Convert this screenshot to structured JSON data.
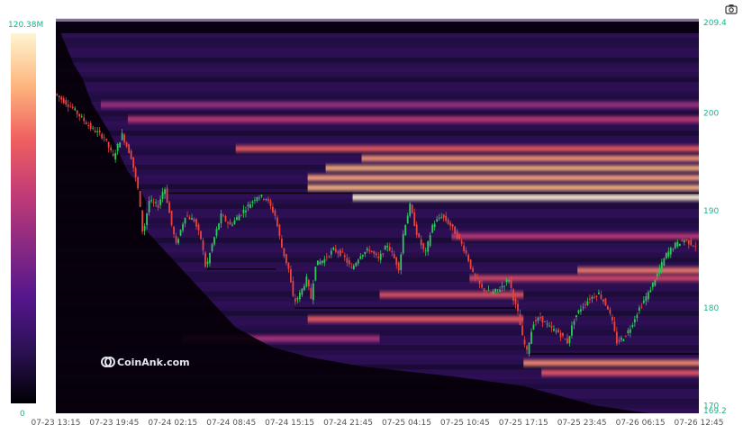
{
  "toolbar": {
    "camera_icon": "camera-icon"
  },
  "watermark": "CoinAnk.com",
  "colorscale": {
    "max_label": "120.38M",
    "min_label": "0",
    "stops": [
      "#000004",
      "#2b1154",
      "#55168c",
      "#8a2a82",
      "#c43c75",
      "#f06060",
      "#fdb57e",
      "#fff5d0"
    ]
  },
  "chart_data": {
    "type": "heatmap",
    "title": "",
    "xlabel": "",
    "ylabel": "",
    "ylim": [
      169.2,
      209.4
    ],
    "y_ticks": [
      170,
      180,
      190,
      200
    ],
    "y_top_label": "209.4",
    "y_bottom_label": "169.2",
    "x_ticks": [
      "07-23 13:15",
      "07-23 19:45",
      "07-24 02:15",
      "07-24 08:45",
      "07-24 15:15",
      "07-24 21:45",
      "07-25 04:15",
      "07-25 10:45",
      "07-25 17:15",
      "07-25 23:45",
      "07-26 06:15",
      "07-26 12:45"
    ],
    "x_range_hours": [
      0,
      71.5
    ],
    "candles": {
      "up_color": "#2ec95a",
      "down_color": "#e8433f",
      "price_path": [
        [
          0,
          202.0
        ],
        [
          2,
          200.5
        ],
        [
          4,
          198.5
        ],
        [
          5.5,
          197.5
        ],
        [
          6.5,
          195.5
        ],
        [
          7.5,
          197.8
        ],
        [
          8.5,
          195.5
        ],
        [
          9.3,
          192.0
        ],
        [
          9.8,
          187.5
        ],
        [
          10.5,
          191.0
        ],
        [
          11.5,
          190.5
        ],
        [
          12.2,
          192.5
        ],
        [
          13,
          188.5
        ],
        [
          13.5,
          186.5
        ],
        [
          14.5,
          189.5
        ],
        [
          15.5,
          189.0
        ],
        [
          16.3,
          187.0
        ],
        [
          16.8,
          184.0
        ],
        [
          17.5,
          186.5
        ],
        [
          18.5,
          189.5
        ],
        [
          19.5,
          188.5
        ],
        [
          20.5,
          189.5
        ],
        [
          21.5,
          190.5
        ],
        [
          22.5,
          191.5
        ],
        [
          23.5,
          191.3
        ],
        [
          24.5,
          189.5
        ],
        [
          25.3,
          186.0
        ],
        [
          26.0,
          184.0
        ],
        [
          26.6,
          180.5
        ],
        [
          27.3,
          181.5
        ],
        [
          28.0,
          183.0
        ],
        [
          28.5,
          181.0
        ],
        [
          29.0,
          184.5
        ],
        [
          30.0,
          185.0
        ],
        [
          31.0,
          186.0
        ],
        [
          32.0,
          185.5
        ],
        [
          33.0,
          184.0
        ],
        [
          34.0,
          185.5
        ],
        [
          35.0,
          186.0
        ],
        [
          36.0,
          185.0
        ],
        [
          37.0,
          186.5
        ],
        [
          37.8,
          185.0
        ],
        [
          38.3,
          184.0
        ],
        [
          38.8,
          188.0
        ],
        [
          39.5,
          190.5
        ],
        [
          40.3,
          187.5
        ],
        [
          41.2,
          185.5
        ],
        [
          42.0,
          188.5
        ],
        [
          43.0,
          189.5
        ],
        [
          44.0,
          188.5
        ],
        [
          45.0,
          187.0
        ],
        [
          45.8,
          185.5
        ],
        [
          46.5,
          183.5
        ],
        [
          47.5,
          182.0
        ],
        [
          48.5,
          181.5
        ],
        [
          49.5,
          182.0
        ],
        [
          50.5,
          183.0
        ],
        [
          51.0,
          181.0
        ],
        [
          51.5,
          179.5
        ],
        [
          52.0,
          177.0
        ],
        [
          52.5,
          175.5
        ],
        [
          53.2,
          178.5
        ],
        [
          54.0,
          179.0
        ],
        [
          55.0,
          178.0
        ],
        [
          56.0,
          177.5
        ],
        [
          57.0,
          176.5
        ],
        [
          57.8,
          179.0
        ],
        [
          58.5,
          180.0
        ],
        [
          59.5,
          181.0
        ],
        [
          60.5,
          181.5
        ],
        [
          61.5,
          180.0
        ],
        [
          62.0,
          178.5
        ],
        [
          62.5,
          176.5
        ],
        [
          63.3,
          177.0
        ],
        [
          64.0,
          178.0
        ],
        [
          65.0,
          180.0
        ],
        [
          66.0,
          181.5
        ],
        [
          67.0,
          183.5
        ],
        [
          68.0,
          185.5
        ],
        [
          69.0,
          186.5
        ],
        [
          70.0,
          187.0
        ],
        [
          71.0,
          186.5
        ],
        [
          71.5,
          186.3
        ]
      ]
    },
    "heat_bands": [
      {
        "y": 191.5,
        "x_start": 33,
        "x_end": 71.5,
        "intensity": 1.0
      },
      {
        "y": 192.5,
        "x_start": 28,
        "x_end": 71.5,
        "intensity": 0.82
      },
      {
        "y": 193.5,
        "x_start": 28,
        "x_end": 71.5,
        "intensity": 0.78
      },
      {
        "y": 194.5,
        "x_start": 30,
        "x_end": 71.5,
        "intensity": 0.8
      },
      {
        "y": 195.5,
        "x_start": 34,
        "x_end": 71.5,
        "intensity": 0.74
      },
      {
        "y": 196.5,
        "x_start": 20,
        "x_end": 71.5,
        "intensity": 0.6
      },
      {
        "y": 199.5,
        "x_start": 8,
        "x_end": 71.5,
        "intensity": 0.42
      },
      {
        "y": 201.0,
        "x_start": 5,
        "x_end": 71.5,
        "intensity": 0.3
      },
      {
        "y": 184.0,
        "x_start": 58,
        "x_end": 71.5,
        "intensity": 0.68
      },
      {
        "y": 183.2,
        "x_start": 46,
        "x_end": 71.5,
        "intensity": 0.5
      },
      {
        "y": 181.5,
        "x_start": 36,
        "x_end": 52,
        "intensity": 0.55
      },
      {
        "y": 179.0,
        "x_start": 28,
        "x_end": 52,
        "intensity": 0.6
      },
      {
        "y": 174.5,
        "x_start": 52,
        "x_end": 71.5,
        "intensity": 0.72
      },
      {
        "y": 173.5,
        "x_start": 54,
        "x_end": 71.5,
        "intensity": 0.58
      },
      {
        "y": 187.5,
        "x_start": 44,
        "x_end": 71.5,
        "intensity": 0.4
      },
      {
        "y": 177.0,
        "x_start": 14,
        "x_end": 36,
        "intensity": 0.35
      }
    ],
    "level_lines": [
      {
        "y": 191.8,
        "x_start": 12,
        "x_end": 71.5
      },
      {
        "y": 184.0,
        "x_start": 16.8,
        "x_end": 24.5
      },
      {
        "y": 180.0,
        "x_start": 26.6,
        "x_end": 51.5
      },
      {
        "y": 175.3,
        "x_start": 52.5,
        "x_end": 71.5
      }
    ],
    "legend": "left colorbar"
  }
}
